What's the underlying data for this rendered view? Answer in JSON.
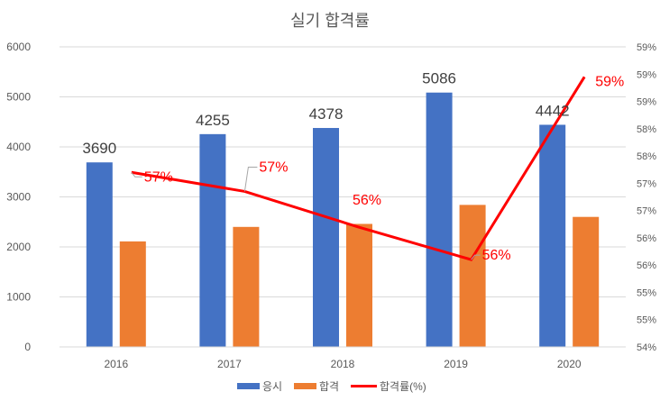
{
  "chart_data": {
    "type": "bar",
    "title": "실기 합격률",
    "categories": [
      "2016",
      "2017",
      "2018",
      "2019",
      "2020"
    ],
    "series": [
      {
        "name": "응시",
        "type": "bar",
        "axis": "left",
        "color": "#4472c4",
        "values": [
          3690,
          4255,
          4378,
          5086,
          4442
        ],
        "data_labels": [
          "3690",
          "4255",
          "4378",
          "5086",
          "4442"
        ]
      },
      {
        "name": "합격",
        "type": "bar",
        "axis": "left",
        "color": "#ed7d31",
        "values": [
          2110,
          2400,
          2460,
          2840,
          2600
        ]
      },
      {
        "name": "합격률(%)",
        "type": "line",
        "axis": "right",
        "color": "#ff0000",
        "values": [
          57.2,
          56.85,
          56.2,
          55.6,
          58.95
        ],
        "data_labels": [
          "57%",
          "57%",
          "56%",
          "56%",
          "59%"
        ]
      }
    ],
    "left_axis": {
      "min": 0,
      "max": 6000,
      "ticks": [
        "0",
        "1000",
        "2000",
        "3000",
        "4000",
        "5000",
        "6000"
      ]
    },
    "right_axis": {
      "min": 54,
      "max": 59.5,
      "ticks": [
        "54%",
        "55%",
        "55%",
        "56%",
        "56%",
        "57%",
        "57%",
        "58%",
        "58%",
        "59%",
        "59%",
        "59%"
      ]
    },
    "grid": true,
    "legend_position": "bottom"
  }
}
